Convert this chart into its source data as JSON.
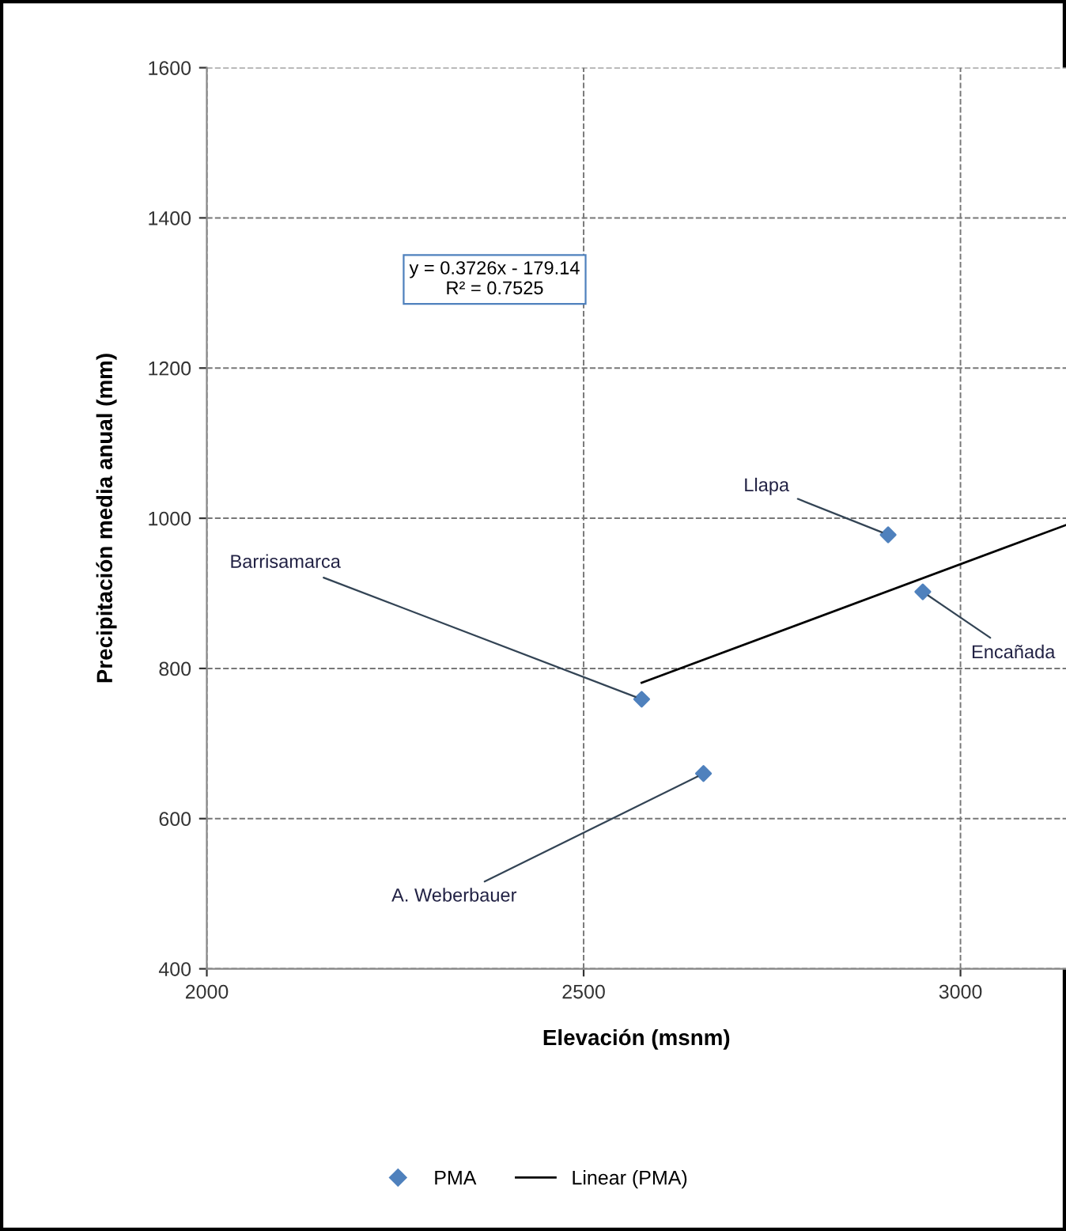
{
  "chart_data": {
    "type": "scatter",
    "xlabel": "Elevación (msnm)",
    "ylabel": "Precipitación media anual (mm)",
    "xlim": [
      2000,
      3140
    ],
    "xticks": [
      2000,
      2500,
      3000
    ],
    "ylim": [
      400,
      1600
    ],
    "yticks": [
      400,
      600,
      800,
      1000,
      1200,
      1400,
      1600
    ],
    "grid": true,
    "legend": "bottom",
    "marker": "diamond",
    "series": [
      {
        "name": "PMA",
        "color": "#4f81bd",
        "x": [
          2577,
          2659,
          2904,
          2950
        ],
        "values": [
          759,
          660,
          978,
          902
        ]
      },
      {
        "name": "Linear (PMA)",
        "type": "line",
        "color": "#000000",
        "line_style": "solid",
        "marker": "none",
        "x": [
          2577,
          3140
        ],
        "values": [
          781,
          991
        ]
      }
    ],
    "annotations": [
      "y = 0.3726x - 179.14\nR² = 0.7525",
      {
        "text": "Barrisamarca",
        "x": 2577,
        "y": 759
      },
      {
        "text": "A. Weberbauer",
        "x": 2659,
        "y": 660
      },
      {
        "text": "Llapa",
        "x": 2904,
        "y": 978
      },
      {
        "text": "Encañada",
        "x": 2950,
        "y": 902
      }
    ]
  }
}
